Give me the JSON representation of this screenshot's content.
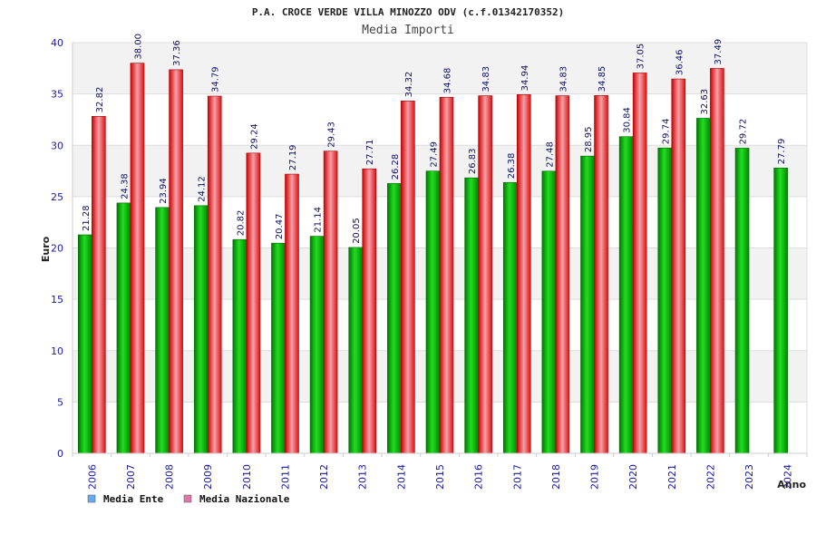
{
  "chart_data": {
    "type": "bar",
    "title": "P.A. CROCE VERDE VILLA MINOZZO ODV (c.f.01342170352)",
    "subtitle": "Media Importi",
    "ylabel": "Euro",
    "xlabel": "Anno",
    "ylim": [
      0,
      40
    ],
    "yticks": [
      0,
      5,
      10,
      15,
      20,
      25,
      30,
      35,
      40
    ],
    "grid": true,
    "legend_position": "bottom-left",
    "categories": [
      "2006",
      "2007",
      "2008",
      "2009",
      "2010",
      "2011",
      "2012",
      "2013",
      "2014",
      "2015",
      "2016",
      "2017",
      "2018",
      "2019",
      "2020",
      "2021",
      "2022",
      "2023",
      "2024"
    ],
    "series": [
      {
        "name": "Media Ente",
        "color": "#00bb00",
        "legend_color": "#66aaee",
        "values": [
          21.28,
          24.38,
          23.94,
          24.12,
          20.82,
          20.47,
          21.14,
          20.05,
          26.28,
          27.49,
          26.83,
          26.38,
          27.48,
          28.95,
          30.84,
          29.74,
          32.63,
          29.72,
          27.79
        ]
      },
      {
        "name": "Media Nazionale",
        "color": "#ee2222",
        "legend_color": "#dd77aa",
        "values": [
          32.82,
          38.0,
          37.36,
          34.79,
          29.24,
          27.19,
          29.43,
          27.71,
          34.32,
          34.68,
          34.83,
          34.94,
          34.83,
          34.85,
          37.05,
          36.46,
          37.49,
          null,
          null
        ]
      }
    ],
    "data_labels": [
      [
        "21.28",
        "24.38",
        "23.94",
        "24.12",
        "20.82",
        "20.47",
        "21.14",
        "20.05",
        "26.28",
        "27.49",
        "26.83",
        "26.38",
        "27.48",
        "28.95",
        "30.84",
        "29.74",
        "32.63",
        "29.72",
        "27.79"
      ],
      [
        "32.82",
        "38.00",
        "37.36",
        "34.79",
        "29.24",
        "27.19",
        "29.43",
        "27.71",
        "34.32",
        "34.68",
        "34.83",
        "34.94",
        "34.83",
        "34.85",
        "37.05",
        "36.46",
        "37.49",
        null,
        null
      ]
    ]
  }
}
